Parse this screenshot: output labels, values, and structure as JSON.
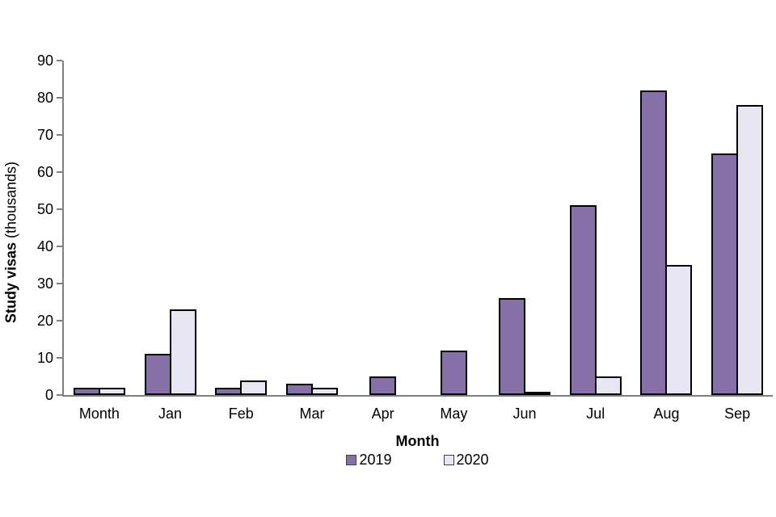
{
  "chart_data": {
    "type": "bar",
    "title": "",
    "categories": [
      "Month",
      "Jan",
      "Feb",
      "Mar",
      "Apr",
      "May",
      "Jun",
      "Jul",
      "Aug",
      "Sep"
    ],
    "series": [
      {
        "name": "2019",
        "color": "#8570A8",
        "values": [
          2,
          11,
          2,
          3,
          5,
          12,
          26,
          51,
          82,
          65
        ]
      },
      {
        "name": "2020",
        "color": "#E9E6F3",
        "values": [
          2,
          23,
          4,
          2,
          0,
          0,
          0.5,
          5,
          35,
          78
        ]
      }
    ],
    "xlabel": "Month",
    "ylabel_bold": "Study visas",
    "ylabel_regular": " (thousands)",
    "ylim": [
      0,
      90
    ],
    "yticks": [
      0,
      10,
      20,
      30,
      40,
      50,
      60,
      70,
      80,
      90
    ],
    "grid": false,
    "legend_position": "bottom",
    "bar_border_color": "#000000",
    "axis_color": "#808080",
    "background_color": "#FFFFFF"
  }
}
